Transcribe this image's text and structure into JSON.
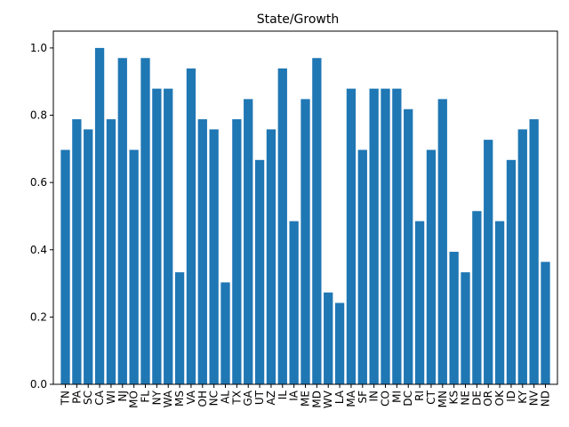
{
  "chart_data": {
    "type": "bar",
    "title": "State/Growth",
    "xlabel": "",
    "ylabel": "",
    "ylim": [
      0,
      1.05
    ],
    "yticks": [
      0.0,
      0.2,
      0.4,
      0.6,
      0.8,
      1.0
    ],
    "ytick_labels": [
      "0.0",
      "0.2",
      "0.4",
      "0.6",
      "0.8",
      "1.0"
    ],
    "bar_color": "#1f77b4",
    "grid": false,
    "categories": [
      "TN",
      "PA",
      "SC",
      "CA",
      "WI",
      "NJ",
      "MO",
      "FL",
      "NY",
      "WA",
      "MS",
      "VA",
      "OH",
      "NC",
      "AL",
      "TX",
      "GA",
      "UT",
      "AZ",
      "IL",
      "IA",
      "ME",
      "MD",
      "WV",
      "LA",
      "MA",
      "SF",
      "IN",
      "CO",
      "MI",
      "DC",
      "RI",
      "CT",
      "MN",
      "KS",
      "NE",
      "DE",
      "OR",
      "OK",
      "ID",
      "KY",
      "NV",
      "ND"
    ],
    "values": [
      0.697,
      0.788,
      0.758,
      1.0,
      0.788,
      0.97,
      0.697,
      0.97,
      0.879,
      0.879,
      0.333,
      0.939,
      0.788,
      0.758,
      0.303,
      0.788,
      0.848,
      0.667,
      0.758,
      0.939,
      0.485,
      0.848,
      0.97,
      0.273,
      0.242,
      0.879,
      0.697,
      0.879,
      0.879,
      0.879,
      0.818,
      0.485,
      0.697,
      0.848,
      0.394,
      0.333,
      0.515,
      0.727,
      0.485,
      0.667,
      0.758,
      0.788,
      0.364
    ]
  }
}
